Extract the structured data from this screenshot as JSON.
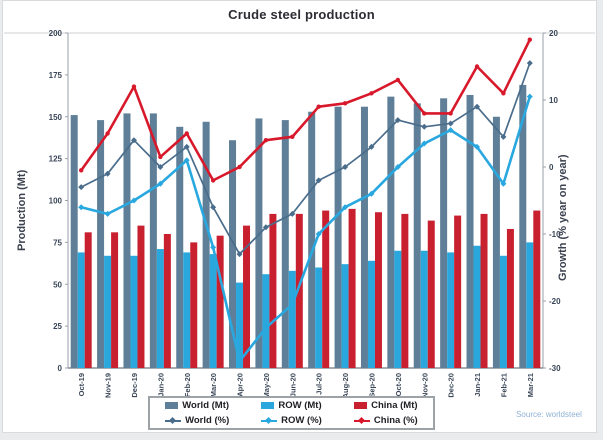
{
  "page": {
    "title": "Crude steel production",
    "source": "Source: worldsteel"
  },
  "chart_data": {
    "type": "combo-bar-line",
    "title": "Crude steel production",
    "categories": [
      "Oct-19",
      "Nov-19",
      "Dec-19",
      "Jan-20",
      "Feb-20",
      "Mar-20",
      "Apr-20",
      "May-20",
      "Jun-20",
      "Jul-20",
      "Aug-20",
      "Sep-20",
      "Oct-20",
      "Nov-20",
      "Dec-20",
      "Jan-21",
      "Feb-21",
      "Mar-21"
    ],
    "left_axis": {
      "label": "Production (Mt)",
      "min": 0,
      "max": 200,
      "step": 25,
      "ticks": [
        0,
        25,
        50,
        75,
        100,
        125,
        150,
        175,
        200
      ]
    },
    "right_axis": {
      "label": "Growth (% year on year)",
      "min": -30,
      "max": 20,
      "step": 10,
      "ticks": [
        -30,
        -20,
        -10,
        0,
        10,
        20
      ]
    },
    "grid": "top-border-only",
    "legend_position": "bottom",
    "series": [
      {
        "id": "world_mt",
        "label": "World (Mt)",
        "type": "bar",
        "axis": "left",
        "color": "#5e7f97",
        "values": [
          151,
          148,
          152,
          152,
          144,
          147,
          136,
          149,
          148,
          153,
          156,
          156,
          162,
          158,
          161,
          163,
          150,
          169
        ]
      },
      {
        "id": "row_mt",
        "label": "ROW (Mt)",
        "type": "bar",
        "axis": "left",
        "color": "#2aa7dd",
        "values": [
          69,
          67,
          67,
          71,
          69,
          68,
          51,
          56,
          58,
          60,
          62,
          64,
          70,
          70,
          69,
          73,
          67,
          75
        ]
      },
      {
        "id": "china_mt",
        "label": "China (Mt)",
        "type": "bar",
        "axis": "left",
        "color": "#c9202f",
        "values": [
          81,
          81,
          85,
          80,
          75,
          79,
          85,
          92,
          92,
          94,
          95,
          93,
          92,
          88,
          91,
          92,
          83,
          94
        ]
      },
      {
        "id": "world_pct",
        "label": "World (%)",
        "type": "line",
        "axis": "right",
        "color": "#4a6d8c",
        "marker": "diamond",
        "values": [
          -3,
          -1,
          4,
          0,
          3,
          -6,
          -13,
          -9,
          -7,
          -2,
          0,
          3,
          7,
          6,
          6.5,
          9,
          4.5,
          15.5
        ]
      },
      {
        "id": "row_pct",
        "label": "ROW (%)",
        "type": "line",
        "axis": "right",
        "color": "#29a8e0",
        "marker": "diamond",
        "values": [
          -6,
          -7,
          -5,
          -2.5,
          1,
          -12,
          -29,
          -24,
          -20.5,
          -10,
          -6,
          -4,
          0,
          3.5,
          5.5,
          3,
          -2.5,
          10.5
        ]
      },
      {
        "id": "china_pct",
        "label": "China (%)",
        "type": "line",
        "axis": "right",
        "color": "#d8192b",
        "marker": "circle",
        "values": [
          -0.5,
          5,
          12,
          1.5,
          5,
          -2,
          0,
          4,
          4.5,
          9,
          9.5,
          11,
          13,
          8,
          8,
          15,
          11,
          19
        ]
      }
    ]
  }
}
